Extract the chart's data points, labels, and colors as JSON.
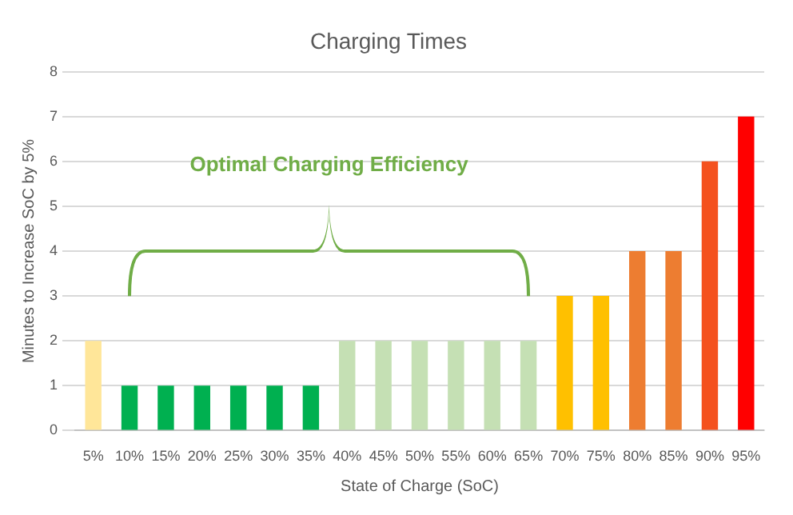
{
  "chart_data": {
    "type": "bar",
    "title": "Charging Times",
    "xlabel": "State of Charge (SoC)",
    "ylabel": "Minutes to Increase SoC by 5%",
    "categories": [
      "5%",
      "10%",
      "15%",
      "20%",
      "25%",
      "30%",
      "35%",
      "40%",
      "45%",
      "50%",
      "55%",
      "60%",
      "65%",
      "70%",
      "75%",
      "80%",
      "85%",
      "90%",
      "95%"
    ],
    "values": [
      2,
      1,
      1,
      1,
      1,
      1,
      1,
      2,
      2,
      2,
      2,
      2,
      2,
      3,
      3,
      4,
      4,
      6,
      7
    ],
    "colors": [
      "#ffe699",
      "#00b050",
      "#00b050",
      "#00b050",
      "#00b050",
      "#00b050",
      "#00b050",
      "#c5e0b4",
      "#c5e0b4",
      "#c5e0b4",
      "#c5e0b4",
      "#c5e0b4",
      "#c5e0b4",
      "#ffc000",
      "#ffc000",
      "#ed7d31",
      "#ed7d31",
      "#f4511e",
      "#ff0000"
    ],
    "ylim": [
      0,
      8
    ],
    "yticks": [
      0,
      1,
      2,
      3,
      4,
      5,
      6,
      7,
      8
    ],
    "grid": "y",
    "annotations": [
      "Optimal Charging Efficiency"
    ]
  }
}
